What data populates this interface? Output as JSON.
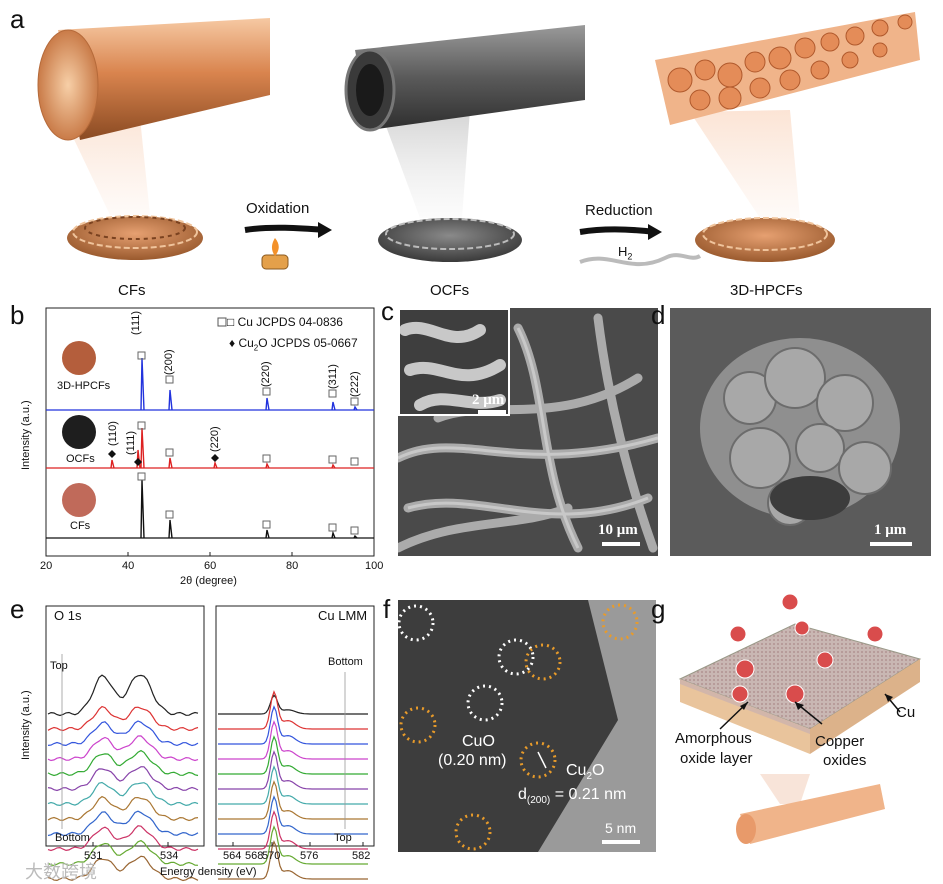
{
  "panel_a": {
    "label": "a",
    "cfs": "CFs",
    "ocfs": "OCFs",
    "hpcfs": "3D-HPCFs",
    "oxidation": "Oxidation",
    "reduction": "Reduction",
    "h2": "H",
    "h2_sub": "2"
  },
  "panel_b": {
    "label": "b",
    "xlabel": "2θ (degree)",
    "ylabel": "Intensity (a.u.)",
    "legend_cu": "□ Cu JCPDS 04-0836",
    "legend_cu2o_prefix": "♦ Cu",
    "legend_cu2o_sub": "2",
    "legend_cu2o_suffix": "O JCPDS 05-0667",
    "samples": [
      "3D-HPCFs",
      "OCFs",
      "CFs"
    ],
    "peaks_cu": [
      "(111)",
      "(200)",
      "(220)",
      "(311)",
      "(222)"
    ],
    "peaks_ocf": [
      "(110)",
      "(111)",
      "(220)"
    ],
    "xticks": [
      "20",
      "40",
      "60",
      "80",
      "100"
    ],
    "colors": {
      "hpcfs": "#2233dd",
      "ocfs": "#dd2222",
      "cfs": "#111111"
    }
  },
  "panel_c": {
    "label": "c",
    "inset_scale": "2 μm",
    "scale": "10 μm"
  },
  "panel_d": {
    "label": "d",
    "scale": "1 μm"
  },
  "panel_e": {
    "label": "e",
    "left_title": "O 1s",
    "right_title": "Cu LMM",
    "ylabel": "Intensity (a.u.)",
    "xlabel": "Energy density (eV)",
    "top": "Top",
    "bottom": "Bottom",
    "left_xticks": [
      "531",
      "534"
    ],
    "right_xticks": [
      "564",
      "568",
      "570",
      "576",
      "582"
    ],
    "right_xticks_full": [
      "564",
      "570",
      "576",
      "582"
    ],
    "right_xtick_568": "568"
  },
  "panel_f": {
    "label": "f",
    "cuo": "CuO",
    "cuo_d": "(0.20 nm)",
    "cu2o_prefix": "Cu",
    "cu2o_sub": "2",
    "cu2o_suffix": "O",
    "d_prefix": "d",
    "d_sub": "(200)",
    "d_suffix": " = 0.21 nm",
    "scale": "5 nm"
  },
  "panel_g": {
    "label": "g",
    "cu": "Cu",
    "amorphous_1": "Amorphous",
    "amorphous_2": "oxide layer",
    "copper_1": "Copper",
    "copper_2": "oxides"
  },
  "watermark": "大数跨境"
}
